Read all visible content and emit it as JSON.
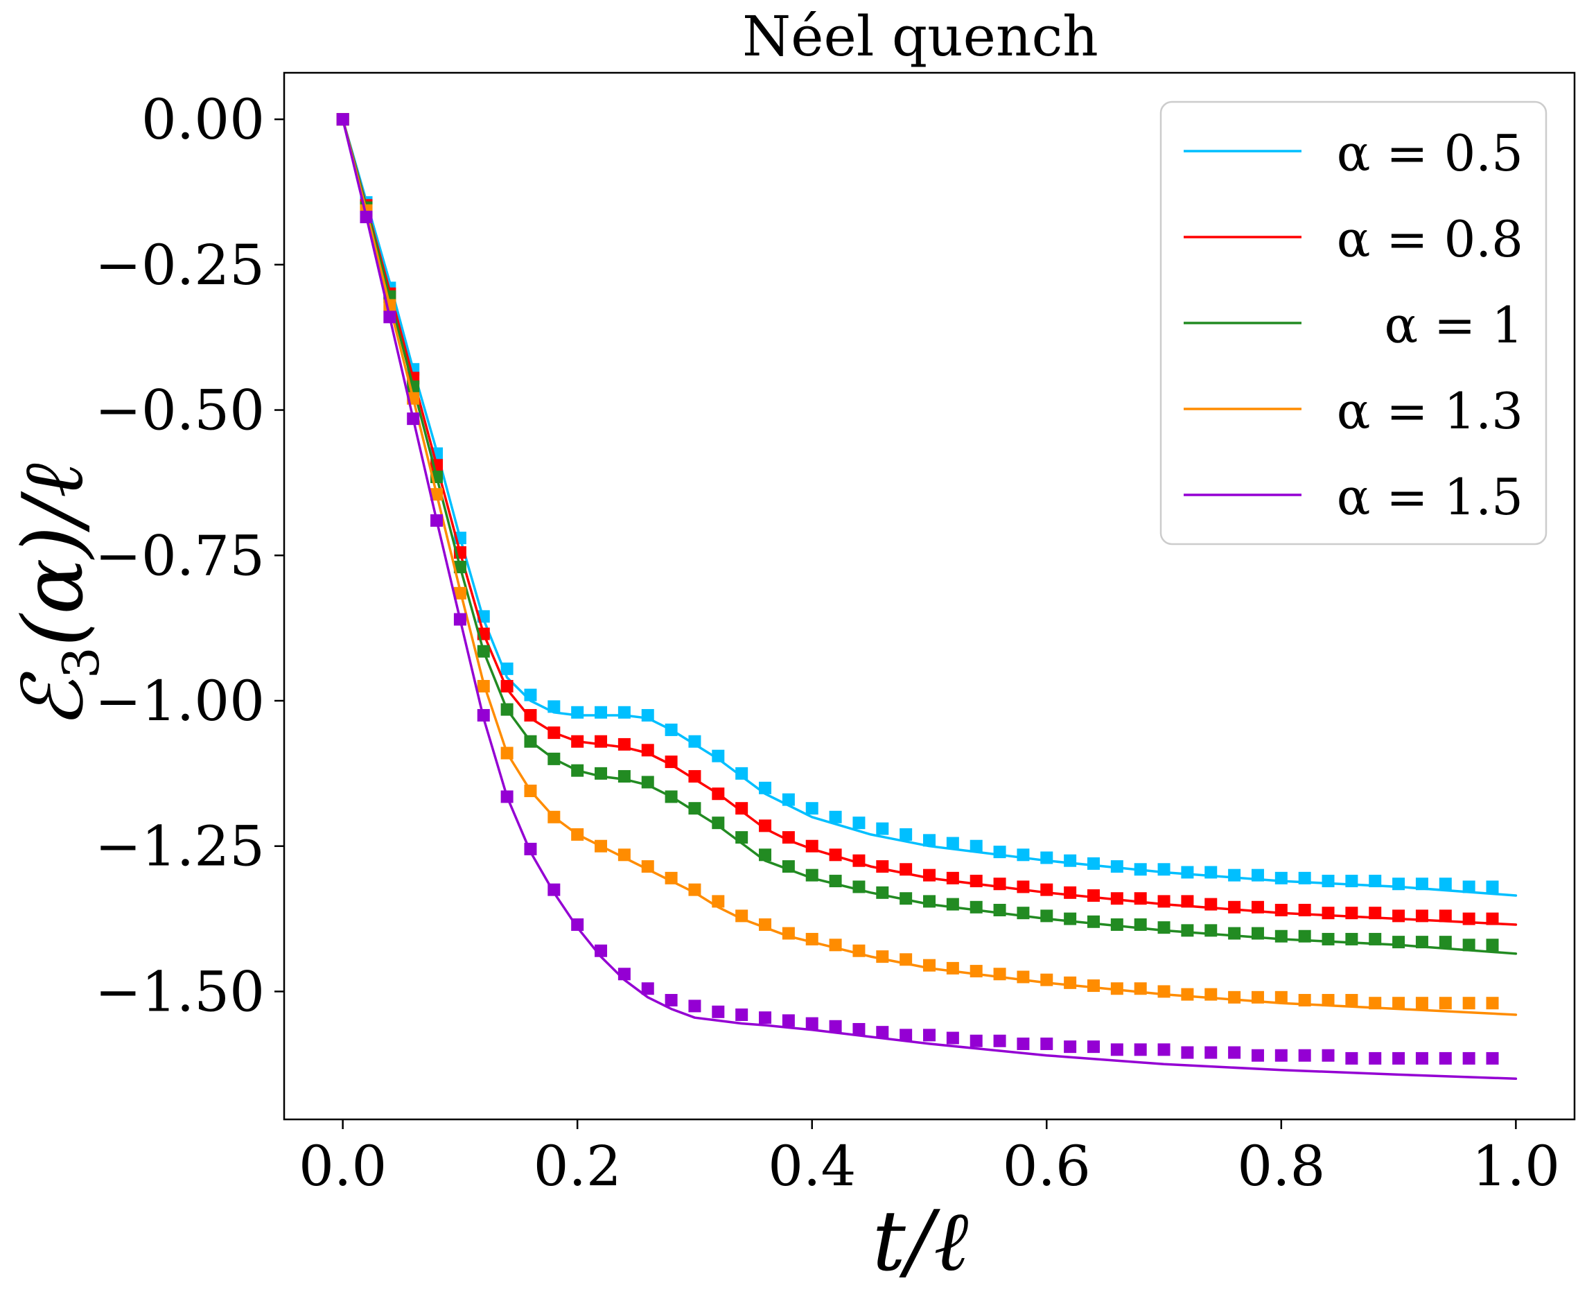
{
  "chart_data": {
    "type": "line",
    "title": "Néel quench",
    "xlabel": "t/ℓ",
    "ylabel_main": "ℰ",
    "ylabel_sub": "3",
    "ylabel_rest": "(α)/ℓ",
    "xlim": [
      -0.05,
      1.05
    ],
    "ylim": [
      -1.72,
      0.08
    ],
    "x_ticks": [
      0.0,
      0.2,
      0.4,
      0.6,
      0.8,
      1.0
    ],
    "x_tick_labels": [
      "0.0",
      "0.2",
      "0.4",
      "0.6",
      "0.8",
      "1.0"
    ],
    "y_ticks": [
      0.0,
      -0.25,
      -0.5,
      -0.75,
      -1.0,
      -1.25,
      -1.5
    ],
    "y_tick_labels": [
      "0.00",
      "−0.25",
      "−0.50",
      "−0.75",
      "−1.00",
      "−1.25",
      "−1.50"
    ],
    "grid": false,
    "legend_position": "top-right",
    "marker": "square",
    "series": [
      {
        "name": "α = 0.5",
        "color": "#00bfff",
        "line": {
          "x": [
            0,
            0.02,
            0.04,
            0.06,
            0.08,
            0.1,
            0.12,
            0.14,
            0.16,
            0.18,
            0.2,
            0.22,
            0.24,
            0.26,
            0.28,
            0.3,
            0.32,
            0.34,
            0.36,
            0.38,
            0.4,
            0.45,
            0.5,
            0.6,
            0.7,
            0.8,
            0.9,
            1.0
          ],
          "y": [
            0,
            -0.14,
            -0.28,
            -0.43,
            -0.57,
            -0.72,
            -0.86,
            -0.96,
            -1.0,
            -1.02,
            -1.025,
            -1.025,
            -1.025,
            -1.03,
            -1.05,
            -1.075,
            -1.1,
            -1.13,
            -1.16,
            -1.18,
            -1.2,
            -1.23,
            -1.25,
            -1.275,
            -1.295,
            -1.31,
            -1.32,
            -1.335
          ]
        },
        "markers": {
          "x": [
            0,
            0.02,
            0.04,
            0.06,
            0.08,
            0.1,
            0.12,
            0.14,
            0.16,
            0.18,
            0.2,
            0.22,
            0.24,
            0.26,
            0.28,
            0.3,
            0.32,
            0.34,
            0.36,
            0.38,
            0.4,
            0.42,
            0.44,
            0.46,
            0.48,
            0.5,
            0.52,
            0.54,
            0.56,
            0.58,
            0.6,
            0.62,
            0.64,
            0.66,
            0.68,
            0.7,
            0.72,
            0.74,
            0.76,
            0.78,
            0.8,
            0.82,
            0.84,
            0.86,
            0.88,
            0.9,
            0.92,
            0.94,
            0.96,
            0.98
          ],
          "y": [
            0,
            -0.143,
            -0.29,
            -0.43,
            -0.575,
            -0.72,
            -0.855,
            -0.945,
            -0.99,
            -1.01,
            -1.02,
            -1.02,
            -1.02,
            -1.025,
            -1.05,
            -1.07,
            -1.095,
            -1.125,
            -1.15,
            -1.17,
            -1.185,
            -1.2,
            -1.21,
            -1.22,
            -1.23,
            -1.24,
            -1.245,
            -1.25,
            -1.26,
            -1.265,
            -1.27,
            -1.275,
            -1.28,
            -1.285,
            -1.29,
            -1.29,
            -1.295,
            -1.295,
            -1.3,
            -1.3,
            -1.305,
            -1.305,
            -1.31,
            -1.31,
            -1.31,
            -1.315,
            -1.315,
            -1.315,
            -1.32,
            -1.32
          ]
        }
      },
      {
        "name": "α = 0.8",
        "color": "#ff0000",
        "line": {
          "x": [
            0,
            0.02,
            0.04,
            0.06,
            0.08,
            0.1,
            0.12,
            0.14,
            0.16,
            0.18,
            0.2,
            0.22,
            0.24,
            0.26,
            0.28,
            0.3,
            0.32,
            0.34,
            0.36,
            0.38,
            0.4,
            0.45,
            0.5,
            0.6,
            0.7,
            0.8,
            0.9,
            1.0
          ],
          "y": [
            0,
            -0.148,
            -0.295,
            -0.445,
            -0.595,
            -0.745,
            -0.885,
            -0.98,
            -1.03,
            -1.055,
            -1.07,
            -1.075,
            -1.08,
            -1.09,
            -1.11,
            -1.135,
            -1.16,
            -1.19,
            -1.22,
            -1.24,
            -1.255,
            -1.285,
            -1.305,
            -1.33,
            -1.35,
            -1.365,
            -1.375,
            -1.385
          ]
        },
        "markers": {
          "x": [
            0,
            0.02,
            0.04,
            0.06,
            0.08,
            0.1,
            0.12,
            0.14,
            0.16,
            0.18,
            0.2,
            0.22,
            0.24,
            0.26,
            0.28,
            0.3,
            0.32,
            0.34,
            0.36,
            0.38,
            0.4,
            0.42,
            0.44,
            0.46,
            0.48,
            0.5,
            0.52,
            0.54,
            0.56,
            0.58,
            0.6,
            0.62,
            0.64,
            0.66,
            0.68,
            0.7,
            0.72,
            0.74,
            0.76,
            0.78,
            0.8,
            0.82,
            0.84,
            0.86,
            0.88,
            0.9,
            0.92,
            0.94,
            0.96,
            0.98
          ],
          "y": [
            0,
            -0.148,
            -0.3,
            -0.445,
            -0.595,
            -0.745,
            -0.885,
            -0.975,
            -1.025,
            -1.055,
            -1.07,
            -1.07,
            -1.075,
            -1.085,
            -1.105,
            -1.13,
            -1.16,
            -1.185,
            -1.215,
            -1.235,
            -1.25,
            -1.265,
            -1.275,
            -1.285,
            -1.29,
            -1.3,
            -1.305,
            -1.31,
            -1.315,
            -1.32,
            -1.325,
            -1.33,
            -1.335,
            -1.34,
            -1.34,
            -1.345,
            -1.345,
            -1.35,
            -1.355,
            -1.355,
            -1.36,
            -1.36,
            -1.365,
            -1.365,
            -1.365,
            -1.37,
            -1.37,
            -1.37,
            -1.375,
            -1.375
          ]
        }
      },
      {
        "name": "α = 1",
        "color": "#228b22",
        "line": {
          "x": [
            0,
            0.02,
            0.04,
            0.06,
            0.08,
            0.1,
            0.12,
            0.14,
            0.16,
            0.18,
            0.2,
            0.22,
            0.24,
            0.26,
            0.28,
            0.3,
            0.32,
            0.34,
            0.36,
            0.38,
            0.4,
            0.45,
            0.5,
            0.6,
            0.7,
            0.8,
            0.9,
            1.0
          ],
          "y": [
            0,
            -0.15,
            -0.305,
            -0.46,
            -0.615,
            -0.77,
            -0.915,
            -1.015,
            -1.07,
            -1.1,
            -1.12,
            -1.13,
            -1.135,
            -1.145,
            -1.165,
            -1.19,
            -1.215,
            -1.245,
            -1.275,
            -1.29,
            -1.305,
            -1.33,
            -1.35,
            -1.375,
            -1.395,
            -1.41,
            -1.42,
            -1.435
          ]
        },
        "markers": {
          "x": [
            0,
            0.02,
            0.04,
            0.06,
            0.08,
            0.1,
            0.12,
            0.14,
            0.16,
            0.18,
            0.2,
            0.22,
            0.24,
            0.26,
            0.28,
            0.3,
            0.32,
            0.34,
            0.36,
            0.38,
            0.4,
            0.42,
            0.44,
            0.46,
            0.48,
            0.5,
            0.52,
            0.54,
            0.56,
            0.58,
            0.6,
            0.62,
            0.64,
            0.66,
            0.68,
            0.7,
            0.72,
            0.74,
            0.76,
            0.78,
            0.8,
            0.82,
            0.84,
            0.86,
            0.88,
            0.9,
            0.92,
            0.94,
            0.96,
            0.98
          ],
          "y": [
            0,
            -0.152,
            -0.305,
            -0.46,
            -0.615,
            -0.77,
            -0.915,
            -1.015,
            -1.07,
            -1.1,
            -1.12,
            -1.125,
            -1.13,
            -1.14,
            -1.165,
            -1.185,
            -1.21,
            -1.235,
            -1.265,
            -1.285,
            -1.3,
            -1.31,
            -1.32,
            -1.33,
            -1.34,
            -1.345,
            -1.35,
            -1.355,
            -1.36,
            -1.365,
            -1.37,
            -1.375,
            -1.38,
            -1.385,
            -1.385,
            -1.39,
            -1.395,
            -1.395,
            -1.4,
            -1.4,
            -1.405,
            -1.405,
            -1.41,
            -1.41,
            -1.41,
            -1.415,
            -1.415,
            -1.415,
            -1.42,
            -1.42
          ]
        }
      },
      {
        "name": "α = 1.3",
        "color": "#ff8c00",
        "line": {
          "x": [
            0,
            0.02,
            0.04,
            0.06,
            0.08,
            0.1,
            0.12,
            0.14,
            0.16,
            0.18,
            0.2,
            0.22,
            0.24,
            0.26,
            0.28,
            0.3,
            0.32,
            0.34,
            0.36,
            0.38,
            0.4,
            0.45,
            0.5,
            0.6,
            0.7,
            0.8,
            0.9,
            1.0
          ],
          "y": [
            0,
            -0.157,
            -0.32,
            -0.48,
            -0.645,
            -0.81,
            -0.97,
            -1.09,
            -1.155,
            -1.2,
            -1.23,
            -1.25,
            -1.27,
            -1.29,
            -1.31,
            -1.33,
            -1.355,
            -1.375,
            -1.39,
            -1.405,
            -1.415,
            -1.44,
            -1.46,
            -1.485,
            -1.505,
            -1.52,
            -1.53,
            -1.54
          ]
        },
        "markers": {
          "x": [
            0,
            0.02,
            0.04,
            0.06,
            0.08,
            0.1,
            0.12,
            0.14,
            0.16,
            0.18,
            0.2,
            0.22,
            0.24,
            0.26,
            0.28,
            0.3,
            0.32,
            0.34,
            0.36,
            0.38,
            0.4,
            0.42,
            0.44,
            0.46,
            0.48,
            0.5,
            0.52,
            0.54,
            0.56,
            0.58,
            0.6,
            0.62,
            0.64,
            0.66,
            0.68,
            0.7,
            0.72,
            0.74,
            0.76,
            0.78,
            0.8,
            0.82,
            0.84,
            0.86,
            0.88,
            0.9,
            0.92,
            0.94,
            0.96,
            0.98
          ],
          "y": [
            0,
            -0.157,
            -0.32,
            -0.48,
            -0.645,
            -0.815,
            -0.975,
            -1.09,
            -1.155,
            -1.2,
            -1.23,
            -1.25,
            -1.265,
            -1.285,
            -1.305,
            -1.325,
            -1.345,
            -1.37,
            -1.385,
            -1.4,
            -1.41,
            -1.42,
            -1.43,
            -1.44,
            -1.445,
            -1.455,
            -1.46,
            -1.465,
            -1.47,
            -1.475,
            -1.48,
            -1.485,
            -1.49,
            -1.495,
            -1.495,
            -1.5,
            -1.505,
            -1.505,
            -1.51,
            -1.51,
            -1.51,
            -1.515,
            -1.515,
            -1.515,
            -1.52,
            -1.52,
            -1.52,
            -1.52,
            -1.52,
            -1.52
          ]
        }
      },
      {
        "name": "α = 1.5",
        "color": "#9400d3",
        "line": {
          "x": [
            0,
            0.02,
            0.04,
            0.06,
            0.08,
            0.1,
            0.12,
            0.14,
            0.16,
            0.18,
            0.2,
            0.22,
            0.24,
            0.26,
            0.28,
            0.3,
            0.32,
            0.34,
            0.36,
            0.38,
            0.4,
            0.45,
            0.5,
            0.6,
            0.7,
            0.8,
            0.9,
            1.0
          ],
          "y": [
            0,
            -0.167,
            -0.34,
            -0.515,
            -0.69,
            -0.86,
            -1.03,
            -1.165,
            -1.26,
            -1.33,
            -1.39,
            -1.44,
            -1.48,
            -1.51,
            -1.53,
            -1.545,
            -1.55,
            -1.555,
            -1.558,
            -1.562,
            -1.566,
            -1.578,
            -1.59,
            -1.61,
            -1.625,
            -1.635,
            -1.643,
            -1.65
          ]
        },
        "markers": {
          "x": [
            0,
            0.02,
            0.04,
            0.06,
            0.08,
            0.1,
            0.12,
            0.14,
            0.16,
            0.18,
            0.2,
            0.22,
            0.24,
            0.26,
            0.28,
            0.3,
            0.32,
            0.34,
            0.36,
            0.38,
            0.4,
            0.42,
            0.44,
            0.46,
            0.48,
            0.5,
            0.52,
            0.54,
            0.56,
            0.58,
            0.6,
            0.62,
            0.64,
            0.66,
            0.68,
            0.7,
            0.72,
            0.74,
            0.76,
            0.78,
            0.8,
            0.82,
            0.84,
            0.86,
            0.88,
            0.9,
            0.92,
            0.94,
            0.96,
            0.98
          ],
          "y": [
            0,
            -0.168,
            -0.34,
            -0.515,
            -0.69,
            -0.86,
            -1.025,
            -1.165,
            -1.255,
            -1.325,
            -1.385,
            -1.43,
            -1.47,
            -1.495,
            -1.515,
            -1.525,
            -1.535,
            -1.54,
            -1.545,
            -1.55,
            -1.555,
            -1.56,
            -1.565,
            -1.57,
            -1.575,
            -1.575,
            -1.58,
            -1.585,
            -1.585,
            -1.59,
            -1.59,
            -1.595,
            -1.595,
            -1.6,
            -1.6,
            -1.6,
            -1.605,
            -1.605,
            -1.605,
            -1.61,
            -1.61,
            -1.61,
            -1.61,
            -1.615,
            -1.615,
            -1.615,
            -1.615,
            -1.615,
            -1.615,
            -1.615
          ]
        }
      }
    ]
  }
}
